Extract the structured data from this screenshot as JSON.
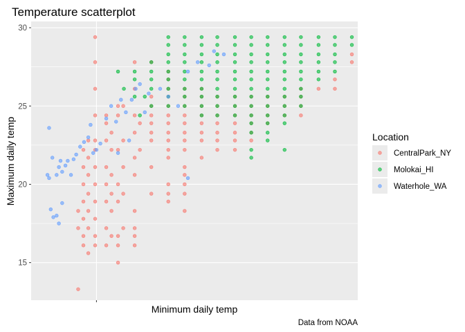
{
  "chart_data": {
    "type": "scatter",
    "title": "Temperature scatterplot",
    "xlabel": "Minimum daily temp",
    "ylabel": "Maximum daily temp",
    "caption": "Data from NOAA",
    "y_ticks": [
      15,
      20,
      25,
      30
    ],
    "ylim": [
      12.6,
      30.4
    ],
    "x_tick_labels": [],
    "grid": true,
    "legend": {
      "title": "Location",
      "position": "right"
    },
    "series": [
      {
        "name": "CentralPark_NY",
        "color": "#F8766D",
        "points": [
          [
            0.144,
            13.3
          ],
          [
            0.16,
            16.1
          ],
          [
            0.175,
            15.6
          ],
          [
            0.16,
            16.7
          ],
          [
            0.175,
            17.2
          ],
          [
            0.16,
            17.8
          ],
          [
            0.175,
            18.3
          ],
          [
            0.16,
            18.9
          ],
          [
            0.175,
            19.4
          ],
          [
            0.16,
            20.0
          ],
          [
            0.175,
            20.6
          ],
          [
            0.16,
            21.1
          ],
          [
            0.175,
            21.7
          ],
          [
            0.175,
            22.8
          ],
          [
            0.16,
            22.2
          ],
          [
            0.144,
            18.3
          ],
          [
            0.144,
            17.2
          ],
          [
            0.196,
            16.1
          ],
          [
            0.196,
            16.7
          ],
          [
            0.196,
            17.8
          ],
          [
            0.196,
            18.9
          ],
          [
            0.196,
            20.0
          ],
          [
            0.196,
            21.1
          ],
          [
            0.196,
            22.2
          ],
          [
            0.196,
            22.8
          ],
          [
            0.196,
            24.4
          ],
          [
            0.196,
            26.1
          ],
          [
            0.196,
            29.4
          ],
          [
            0.196,
            27.8
          ],
          [
            0.23,
            16.1
          ],
          [
            0.246,
            16.7
          ],
          [
            0.23,
            17.2
          ],
          [
            0.246,
            18.3
          ],
          [
            0.23,
            18.9
          ],
          [
            0.246,
            19.4
          ],
          [
            0.23,
            20.0
          ],
          [
            0.246,
            20.6
          ],
          [
            0.23,
            21.1
          ],
          [
            0.246,
            22.2
          ],
          [
            0.23,
            22.8
          ],
          [
            0.246,
            23.3
          ],
          [
            0.23,
            23.9
          ],
          [
            0.23,
            24.4
          ],
          [
            0.266,
            15.0
          ],
          [
            0.266,
            16.1
          ],
          [
            0.266,
            16.7
          ],
          [
            0.282,
            17.2
          ],
          [
            0.266,
            18.9
          ],
          [
            0.282,
            19.4
          ],
          [
            0.266,
            20.0
          ],
          [
            0.282,
            21.1
          ],
          [
            0.266,
            22.2
          ],
          [
            0.282,
            22.8
          ],
          [
            0.266,
            24.4
          ],
          [
            0.282,
            25.0
          ],
          [
            0.266,
            25.0
          ],
          [
            0.317,
            16.1
          ],
          [
            0.317,
            16.7
          ],
          [
            0.317,
            17.2
          ],
          [
            0.317,
            18.3
          ],
          [
            0.317,
            20.6
          ],
          [
            0.317,
            21.7
          ],
          [
            0.333,
            22.2
          ],
          [
            0.317,
            23.3
          ],
          [
            0.333,
            23.9
          ],
          [
            0.317,
            24.4
          ],
          [
            0.317,
            26.1
          ],
          [
            0.317,
            27.8
          ],
          [
            0.368,
            19.4
          ],
          [
            0.368,
            21.1
          ],
          [
            0.368,
            22.8
          ],
          [
            0.368,
            23.3
          ],
          [
            0.368,
            23.9
          ],
          [
            0.368,
            24.4
          ],
          [
            0.368,
            25.0
          ],
          [
            0.368,
            25.6
          ],
          [
            0.368,
            27.8
          ],
          [
            0.42,
            18.9
          ],
          [
            0.42,
            19.4
          ],
          [
            0.42,
            20.0
          ],
          [
            0.42,
            21.7
          ],
          [
            0.42,
            22.2
          ],
          [
            0.42,
            22.8
          ],
          [
            0.42,
            23.3
          ],
          [
            0.42,
            23.9
          ],
          [
            0.42,
            24.4
          ],
          [
            0.42,
            25.0
          ],
          [
            0.42,
            25.6
          ],
          [
            0.42,
            26.1
          ],
          [
            0.42,
            26.7
          ],
          [
            0.42,
            27.2
          ],
          [
            0.47,
            18.3
          ],
          [
            0.47,
            19.4
          ],
          [
            0.47,
            20.0
          ],
          [
            0.47,
            20.6
          ],
          [
            0.47,
            21.1
          ],
          [
            0.47,
            22.2
          ],
          [
            0.47,
            22.8
          ],
          [
            0.47,
            23.3
          ],
          [
            0.47,
            23.9
          ],
          [
            0.47,
            24.4
          ],
          [
            0.47,
            25.0
          ],
          [
            0.47,
            25.6
          ],
          [
            0.47,
            26.1
          ],
          [
            0.522,
            21.7
          ],
          [
            0.522,
            22.8
          ],
          [
            0.522,
            23.3
          ],
          [
            0.522,
            23.9
          ],
          [
            0.522,
            24.4
          ],
          [
            0.522,
            25.0
          ],
          [
            0.522,
            25.6
          ],
          [
            0.522,
            26.1
          ],
          [
            0.57,
            22.2
          ],
          [
            0.57,
            22.8
          ],
          [
            0.57,
            23.3
          ],
          [
            0.57,
            23.9
          ],
          [
            0.57,
            24.4
          ],
          [
            0.57,
            25.0
          ],
          [
            0.57,
            25.6
          ],
          [
            0.624,
            22.2
          ],
          [
            0.624,
            22.8
          ],
          [
            0.624,
            23.3
          ],
          [
            0.624,
            23.9
          ],
          [
            0.624,
            24.4
          ],
          [
            0.624,
            25.0
          ],
          [
            0.624,
            25.6
          ],
          [
            0.674,
            22.8
          ],
          [
            0.674,
            23.3
          ],
          [
            0.674,
            23.9
          ],
          [
            0.674,
            24.4
          ],
          [
            0.674,
            25.0
          ],
          [
            0.674,
            25.6
          ],
          [
            0.724,
            23.9
          ],
          [
            0.724,
            24.4
          ],
          [
            0.724,
            25.0
          ],
          [
            0.724,
            25.6
          ],
          [
            0.776,
            24.4
          ],
          [
            0.776,
            25.0
          ],
          [
            0.776,
            25.6
          ],
          [
            0.826,
            24.4
          ],
          [
            0.826,
            25.0
          ],
          [
            0.826,
            25.6
          ],
          [
            0.826,
            26.1
          ],
          [
            0.88,
            26.1
          ],
          [
            0.93,
            26.1
          ],
          [
            0.93,
            26.7
          ],
          [
            0.982,
            27.8
          ],
          [
            0.982,
            28.3
          ]
        ]
      },
      {
        "name": "Molokai_HI",
        "color": "#00BA38",
        "points": [
          [
            0.266,
            27.2
          ],
          [
            0.284,
            26.1
          ],
          [
            0.317,
            27.2
          ],
          [
            0.317,
            26.7
          ],
          [
            0.317,
            25.6
          ],
          [
            0.333,
            24.4
          ],
          [
            0.348,
            25.6
          ],
          [
            0.368,
            25.0
          ],
          [
            0.368,
            26.1
          ],
          [
            0.368,
            26.7
          ],
          [
            0.368,
            27.2
          ],
          [
            0.368,
            27.8
          ],
          [
            0.42,
            25.0
          ],
          [
            0.42,
            25.6
          ],
          [
            0.42,
            26.1
          ],
          [
            0.42,
            26.7
          ],
          [
            0.42,
            27.2
          ],
          [
            0.42,
            27.8
          ],
          [
            0.42,
            28.3
          ],
          [
            0.42,
            28.9
          ],
          [
            0.42,
            29.4
          ],
          [
            0.47,
            25.0
          ],
          [
            0.47,
            25.6
          ],
          [
            0.47,
            26.1
          ],
          [
            0.47,
            26.7
          ],
          [
            0.47,
            27.2
          ],
          [
            0.47,
            27.8
          ],
          [
            0.47,
            28.3
          ],
          [
            0.47,
            28.9
          ],
          [
            0.47,
            29.4
          ],
          [
            0.522,
            24.4
          ],
          [
            0.522,
            25.0
          ],
          [
            0.522,
            25.6
          ],
          [
            0.522,
            26.1
          ],
          [
            0.522,
            26.7
          ],
          [
            0.522,
            27.2
          ],
          [
            0.522,
            27.8
          ],
          [
            0.522,
            28.3
          ],
          [
            0.522,
            28.9
          ],
          [
            0.522,
            29.4
          ],
          [
            0.57,
            24.4
          ],
          [
            0.57,
            25.0
          ],
          [
            0.57,
            25.6
          ],
          [
            0.57,
            26.1
          ],
          [
            0.57,
            26.7
          ],
          [
            0.57,
            27.2
          ],
          [
            0.57,
            27.8
          ],
          [
            0.57,
            28.3
          ],
          [
            0.57,
            28.9
          ],
          [
            0.57,
            29.4
          ],
          [
            0.624,
            24.4
          ],
          [
            0.624,
            25.0
          ],
          [
            0.624,
            25.6
          ],
          [
            0.624,
            26.1
          ],
          [
            0.624,
            26.7
          ],
          [
            0.624,
            27.2
          ],
          [
            0.624,
            27.8
          ],
          [
            0.624,
            28.3
          ],
          [
            0.624,
            28.9
          ],
          [
            0.624,
            29.4
          ],
          [
            0.674,
            21.7
          ],
          [
            0.674,
            22.2
          ],
          [
            0.674,
            23.3
          ],
          [
            0.674,
            23.9
          ],
          [
            0.674,
            24.4
          ],
          [
            0.674,
            25.0
          ],
          [
            0.674,
            25.6
          ],
          [
            0.674,
            26.1
          ],
          [
            0.674,
            26.7
          ],
          [
            0.674,
            27.2
          ],
          [
            0.674,
            27.8
          ],
          [
            0.674,
            28.3
          ],
          [
            0.674,
            28.9
          ],
          [
            0.674,
            29.4
          ],
          [
            0.724,
            22.8
          ],
          [
            0.724,
            23.3
          ],
          [
            0.724,
            23.9
          ],
          [
            0.724,
            24.4
          ],
          [
            0.724,
            25.0
          ],
          [
            0.724,
            25.6
          ],
          [
            0.724,
            26.1
          ],
          [
            0.724,
            26.7
          ],
          [
            0.724,
            27.2
          ],
          [
            0.724,
            27.8
          ],
          [
            0.724,
            28.3
          ],
          [
            0.724,
            28.9
          ],
          [
            0.724,
            29.4
          ],
          [
            0.776,
            22.2
          ],
          [
            0.776,
            23.9
          ],
          [
            0.776,
            24.4
          ],
          [
            0.776,
            25.0
          ],
          [
            0.776,
            25.6
          ],
          [
            0.776,
            26.1
          ],
          [
            0.776,
            26.7
          ],
          [
            0.776,
            27.2
          ],
          [
            0.776,
            27.8
          ],
          [
            0.776,
            28.3
          ],
          [
            0.776,
            28.9
          ],
          [
            0.776,
            29.4
          ],
          [
            0.826,
            25.0
          ],
          [
            0.826,
            25.6
          ],
          [
            0.826,
            26.1
          ],
          [
            0.826,
            26.7
          ],
          [
            0.826,
            27.2
          ],
          [
            0.826,
            27.8
          ],
          [
            0.826,
            28.3
          ],
          [
            0.826,
            28.9
          ],
          [
            0.826,
            29.4
          ],
          [
            0.88,
            26.7
          ],
          [
            0.88,
            27.2
          ],
          [
            0.88,
            27.8
          ],
          [
            0.88,
            28.3
          ],
          [
            0.88,
            28.9
          ],
          [
            0.88,
            29.4
          ],
          [
            0.93,
            27.2
          ],
          [
            0.93,
            27.8
          ],
          [
            0.93,
            28.3
          ],
          [
            0.93,
            28.9
          ],
          [
            0.93,
            29.4
          ],
          [
            0.982,
            28.9
          ],
          [
            0.982,
            29.4
          ]
        ]
      },
      {
        "name": "Waterhole_WA",
        "color": "#619CFF",
        "points": [
          [
            0.055,
            23.6
          ],
          [
            0.05,
            20.6
          ],
          [
            0.055,
            20.4
          ],
          [
            0.065,
            21.7
          ],
          [
            0.078,
            20.6
          ],
          [
            0.085,
            21.1
          ],
          [
            0.09,
            21.5
          ],
          [
            0.095,
            20.8
          ],
          [
            0.06,
            18.4
          ],
          [
            0.068,
            17.9
          ],
          [
            0.078,
            18.0
          ],
          [
            0.085,
            17.5
          ],
          [
            0.095,
            18.8
          ],
          [
            0.105,
            21.2
          ],
          [
            0.112,
            21.5
          ],
          [
            0.122,
            20.6
          ],
          [
            0.13,
            21.6
          ],
          [
            0.138,
            21.9
          ],
          [
            0.15,
            22.4
          ],
          [
            0.162,
            22.7
          ],
          [
            0.175,
            23.0
          ],
          [
            0.182,
            23.8
          ],
          [
            0.19,
            22.0
          ],
          [
            0.2,
            22.2
          ],
          [
            0.212,
            22.6
          ],
          [
            0.23,
            24.2
          ],
          [
            0.245,
            25.0
          ],
          [
            0.26,
            24.0
          ],
          [
            0.275,
            25.4
          ],
          [
            0.29,
            24.6
          ],
          [
            0.308,
            25.4
          ],
          [
            0.32,
            26.1
          ],
          [
            0.333,
            26.4
          ],
          [
            0.348,
            24.6
          ],
          [
            0.36,
            25.8
          ],
          [
            0.395,
            26.1
          ],
          [
            0.42,
            25.6
          ],
          [
            0.45,
            25.0
          ],
          [
            0.48,
            27.2
          ],
          [
            0.51,
            27.8
          ],
          [
            0.545,
            27.6
          ],
          [
            0.56,
            28.5
          ],
          [
            0.59,
            28.3
          ],
          [
            0.48,
            20.4
          ],
          [
            0.3,
            22.8
          ],
          [
            0.266,
            22.0
          ]
        ]
      }
    ]
  }
}
